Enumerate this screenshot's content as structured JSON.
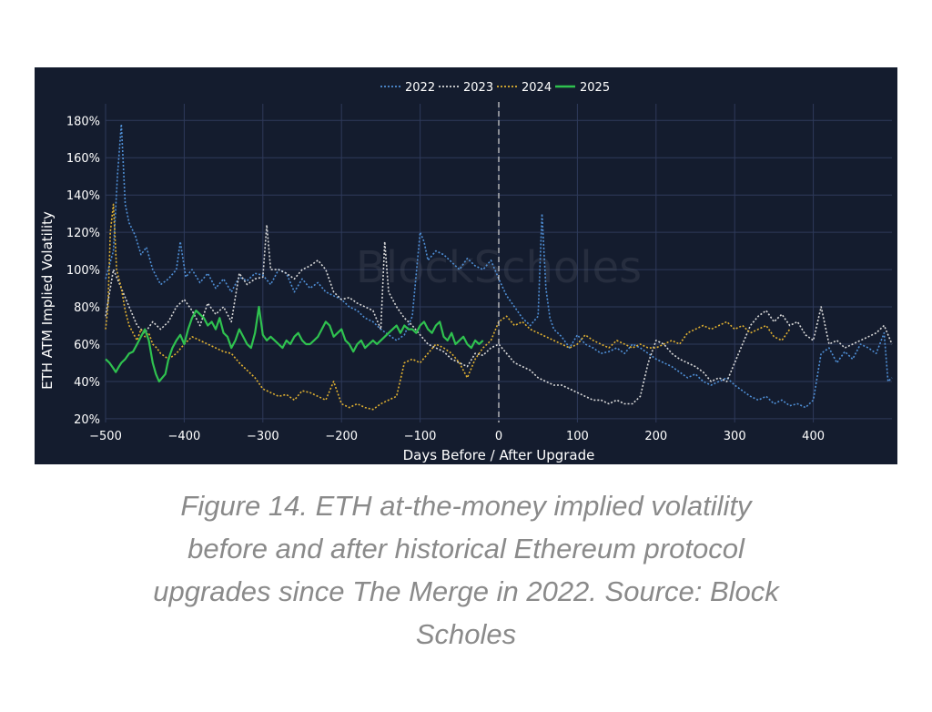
{
  "chart_data": {
    "type": "line",
    "title": "",
    "xlabel": "Days Before / After Upgrade",
    "ylabel": "ETH ATM Implied Volatility",
    "xlim": [
      -500,
      500
    ],
    "ylim": [
      18,
      186
    ],
    "xticks": [
      -500,
      -400,
      -300,
      -200,
      -100,
      0,
      100,
      200,
      300,
      400
    ],
    "xtick_labels": [
      "−500",
      "−400",
      "−300",
      "−200",
      "−100",
      "0",
      "100",
      "200",
      "300",
      "400"
    ],
    "yticks": [
      20,
      40,
      60,
      80,
      100,
      120,
      140,
      160,
      180
    ],
    "ytick_labels": [
      "20%",
      "40%",
      "60%",
      "80%",
      "100%",
      "120%",
      "140%",
      "160%",
      "180%"
    ],
    "grid": true,
    "legend_position": "top-center",
    "vline_x": 0,
    "watermark": "BlockScholes",
    "series": [
      {
        "name": "2022",
        "color": "#4f8fd6",
        "dash": "dotted",
        "x": [
          -500,
          -490,
          -485,
          -480,
          -475,
          -470,
          -462,
          -455,
          -448,
          -440,
          -430,
          -420,
          -410,
          -405,
          -398,
          -390,
          -380,
          -370,
          -360,
          -350,
          -340,
          -330,
          -320,
          -310,
          -300,
          -290,
          -280,
          -270,
          -260,
          -250,
          -240,
          -230,
          -220,
          -210,
          -200,
          -190,
          -180,
          -170,
          -160,
          -150,
          -140,
          -130,
          -120,
          -110,
          -100,
          -95,
          -90,
          -80,
          -70,
          -60,
          -50,
          -40,
          -30,
          -20,
          -10,
          0,
          10,
          20,
          30,
          40,
          50,
          55,
          60,
          65,
          70,
          80,
          90,
          100,
          110,
          120,
          130,
          140,
          150,
          160,
          170,
          180,
          190,
          200,
          210,
          220,
          230,
          240,
          250,
          260,
          270,
          280,
          290,
          300,
          310,
          320,
          330,
          340,
          350,
          360,
          370,
          380,
          390,
          400,
          410,
          420,
          430,
          440,
          450,
          460,
          470,
          480,
          490,
          495,
          500
        ],
        "values": [
          95,
          110,
          150,
          178,
          135,
          125,
          118,
          108,
          112,
          100,
          92,
          95,
          100,
          115,
          96,
          100,
          93,
          98,
          90,
          95,
          88,
          96,
          94,
          98,
          97,
          92,
          100,
          98,
          88,
          95,
          90,
          93,
          88,
          86,
          84,
          80,
          78,
          74,
          72,
          68,
          65,
          62,
          65,
          75,
          120,
          115,
          105,
          110,
          108,
          104,
          100,
          106,
          102,
          100,
          105,
          95,
          86,
          80,
          74,
          70,
          75,
          130,
          90,
          74,
          68,
          64,
          58,
          65,
          60,
          58,
          55,
          56,
          58,
          55,
          60,
          58,
          55,
          52,
          50,
          48,
          45,
          42,
          44,
          40,
          38,
          40,
          42,
          38,
          35,
          32,
          30,
          32,
          28,
          30,
          27,
          28,
          26,
          30,
          55,
          58,
          50,
          56,
          52,
          60,
          58,
          55,
          66,
          40,
          42
        ]
      },
      {
        "name": "2023",
        "color": "#d9d9d9",
        "dash": "dotted",
        "x": [
          -500,
          -490,
          -480,
          -470,
          -460,
          -450,
          -440,
          -430,
          -420,
          -410,
          -400,
          -390,
          -380,
          -370,
          -360,
          -350,
          -340,
          -330,
          -320,
          -310,
          -300,
          -295,
          -290,
          -280,
          -270,
          -260,
          -250,
          -240,
          -230,
          -220,
          -210,
          -200,
          -190,
          -180,
          -170,
          -160,
          -150,
          -145,
          -140,
          -130,
          -120,
          -110,
          -100,
          -90,
          -80,
          -70,
          -60,
          -50,
          -40,
          -30,
          -20,
          -10,
          0,
          10,
          20,
          30,
          40,
          50,
          60,
          70,
          80,
          90,
          100,
          110,
          120,
          130,
          140,
          150,
          160,
          170,
          180,
          190,
          200,
          210,
          220,
          230,
          240,
          250,
          260,
          270,
          280,
          290,
          300,
          310,
          320,
          330,
          340,
          350,
          360,
          370,
          380,
          390,
          400,
          410,
          420,
          430,
          440,
          450,
          460,
          470,
          480,
          490,
          500
        ],
        "values": [
          75,
          100,
          90,
          80,
          70,
          66,
          72,
          68,
          72,
          80,
          84,
          78,
          70,
          82,
          76,
          80,
          72,
          98,
          92,
          95,
          96,
          124,
          100,
          100,
          98,
          95,
          100,
          102,
          105,
          100,
          88,
          84,
          85,
          82,
          80,
          78,
          68,
          115,
          88,
          80,
          74,
          70,
          65,
          60,
          58,
          56,
          52,
          50,
          48,
          55,
          54,
          58,
          60,
          55,
          50,
          48,
          46,
          42,
          40,
          38,
          38,
          36,
          34,
          32,
          30,
          30,
          28,
          30,
          28,
          28,
          32,
          50,
          62,
          60,
          55,
          52,
          50,
          48,
          45,
          40,
          42,
          40,
          50,
          60,
          70,
          75,
          78,
          72,
          76,
          70,
          72,
          65,
          62,
          80,
          60,
          62,
          58,
          60,
          62,
          64,
          66,
          70,
          60
        ]
      },
      {
        "name": "2024",
        "color": "#e0b030",
        "dash": "dotted",
        "x": [
          -500,
          -497,
          -494,
          -490,
          -486,
          -480,
          -475,
          -470,
          -465,
          -460,
          -455,
          -450,
          -445,
          -440,
          -435,
          -430,
          -420,
          -410,
          -400,
          -390,
          -380,
          -370,
          -360,
          -350,
          -340,
          -330,
          -320,
          -310,
          -300,
          -290,
          -280,
          -270,
          -260,
          -250,
          -240,
          -230,
          -220,
          -210,
          -200,
          -190,
          -180,
          -170,
          -160,
          -150,
          -140,
          -130,
          -120,
          -110,
          -100,
          -90,
          -80,
          -70,
          -60,
          -50,
          -40,
          -30,
          -20,
          -10,
          0,
          10,
          20,
          30,
          40,
          50,
          60,
          70,
          80,
          90,
          100,
          110,
          120,
          130,
          140,
          150,
          160,
          170,
          180,
          190,
          200,
          210,
          220,
          230,
          240,
          250,
          260,
          270,
          280,
          290,
          300,
          310,
          320,
          330,
          340,
          350,
          360,
          370
        ],
        "values": [
          68,
          80,
          120,
          135,
          100,
          90,
          78,
          70,
          66,
          62,
          68,
          64,
          66,
          60,
          58,
          55,
          52,
          55,
          60,
          64,
          62,
          60,
          58,
          56,
          55,
          50,
          46,
          42,
          36,
          34,
          32,
          33,
          30,
          35,
          34,
          32,
          30,
          40,
          28,
          26,
          28,
          26,
          25,
          28,
          30,
          32,
          50,
          52,
          50,
          55,
          60,
          58,
          55,
          50,
          42,
          52,
          58,
          62,
          72,
          75,
          70,
          72,
          68,
          66,
          64,
          62,
          60,
          58,
          60,
          65,
          62,
          60,
          58,
          62,
          60,
          58,
          60,
          58,
          58,
          60,
          62,
          60,
          66,
          68,
          70,
          68,
          70,
          72,
          68,
          70,
          66,
          68,
          70,
          64,
          62,
          68
        ]
      },
      {
        "name": "2025",
        "color": "#2fc24f",
        "dash": "solid",
        "x": [
          -500,
          -495,
          -490,
          -487,
          -483,
          -480,
          -475,
          -470,
          -465,
          -460,
          -455,
          -450,
          -445,
          -440,
          -436,
          -432,
          -428,
          -424,
          -420,
          -415,
          -410,
          -405,
          -400,
          -395,
          -390,
          -385,
          -380,
          -375,
          -370,
          -365,
          -360,
          -355,
          -350,
          -345,
          -340,
          -335,
          -330,
          -325,
          -320,
          -315,
          -310,
          -305,
          -300,
          -295,
          -290,
          -285,
          -280,
          -275,
          -270,
          -265,
          -260,
          -255,
          -250,
          -245,
          -240,
          -235,
          -230,
          -225,
          -220,
          -215,
          -210,
          -205,
          -200,
          -195,
          -190,
          -185,
          -180,
          -175,
          -170,
          -165,
          -160,
          -155,
          -150,
          -145,
          -140,
          -135,
          -130,
          -125,
          -120,
          -115,
          -110,
          -105,
          -100,
          -95,
          -90,
          -85,
          -80,
          -75,
          -70,
          -65,
          -60,
          -55,
          -50,
          -45,
          -40,
          -35,
          -30,
          -25,
          -20
        ],
        "values": [
          52,
          50,
          47,
          45,
          48,
          50,
          52,
          55,
          56,
          60,
          64,
          68,
          62,
          50,
          44,
          40,
          42,
          44,
          52,
          58,
          62,
          65,
          60,
          68,
          74,
          78,
          76,
          74,
          70,
          72,
          68,
          74,
          66,
          64,
          58,
          62,
          68,
          64,
          60,
          58,
          66,
          80,
          65,
          62,
          64,
          62,
          60,
          58,
          62,
          60,
          64,
          66,
          62,
          60,
          60,
          62,
          64,
          68,
          72,
          70,
          64,
          66,
          68,
          62,
          60,
          56,
          60,
          62,
          58,
          60,
          62,
          60,
          62,
          64,
          66,
          68,
          70,
          66,
          70,
          68,
          68,
          66,
          70,
          72,
          68,
          66,
          70,
          72,
          64,
          62,
          66,
          60,
          62,
          64,
          60,
          58,
          62,
          60,
          62
        ]
      }
    ]
  },
  "caption": "Figure 14. ETH at-the-money implied volatility before and after historical Ethereum protocol upgrades since The Merge in 2022. Source: Block Scholes"
}
